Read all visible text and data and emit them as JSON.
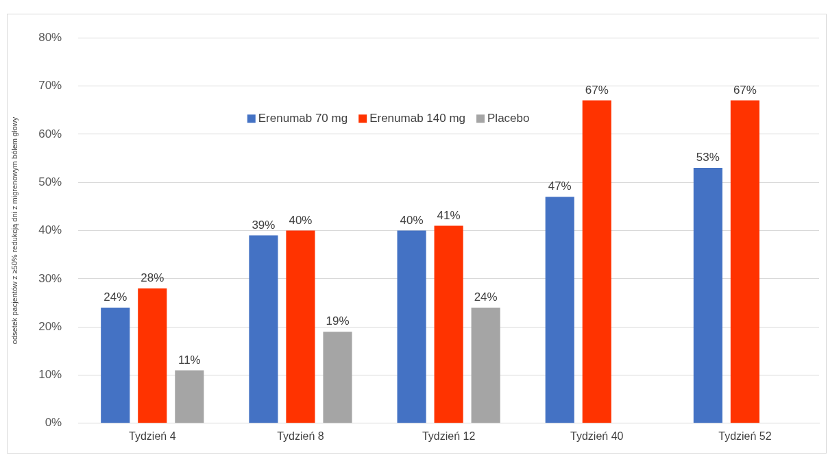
{
  "chart_data": {
    "type": "bar",
    "ylabel": "odsetek pacjentów z ≥50% redukcją dni z migrenowym bólem głowy",
    "categories": [
      "Tydzień 4",
      "Tydzień 8",
      "Tydzień 12",
      "Tydzień 40",
      "Tydzień 52"
    ],
    "series": [
      {
        "name": "Erenumab 70 mg",
        "color": "#4472c4",
        "values": [
          24,
          39,
          40,
          47,
          53
        ],
        "value_labels": [
          "24%",
          "39%",
          "40%",
          "47%",
          "53%"
        ]
      },
      {
        "name": "Erenumab 140 mg",
        "color": "#ff3300",
        "values": [
          28,
          40,
          41,
          67,
          67
        ],
        "value_labels": [
          "28%",
          "40%",
          "41%",
          "67%",
          "67%"
        ]
      },
      {
        "name": "Placebo",
        "color": "#a5a5a5",
        "values": [
          11,
          19,
          24,
          null,
          null
        ],
        "value_labels": [
          "11%",
          "19%",
          "24%",
          null,
          null
        ]
      }
    ],
    "ylim": [
      0,
      80
    ],
    "yticks": [
      {
        "value": 0,
        "label": "0%"
      },
      {
        "value": 10,
        "label": "10%"
      },
      {
        "value": 20,
        "label": "20%"
      },
      {
        "value": 30,
        "label": "30%"
      },
      {
        "value": 40,
        "label": "40%"
      },
      {
        "value": 50,
        "label": "50%"
      },
      {
        "value": 60,
        "label": "60%"
      },
      {
        "value": 70,
        "label": "70%"
      },
      {
        "value": 80,
        "label": "80%"
      }
    ],
    "grid": "y",
    "legend": "top"
  }
}
